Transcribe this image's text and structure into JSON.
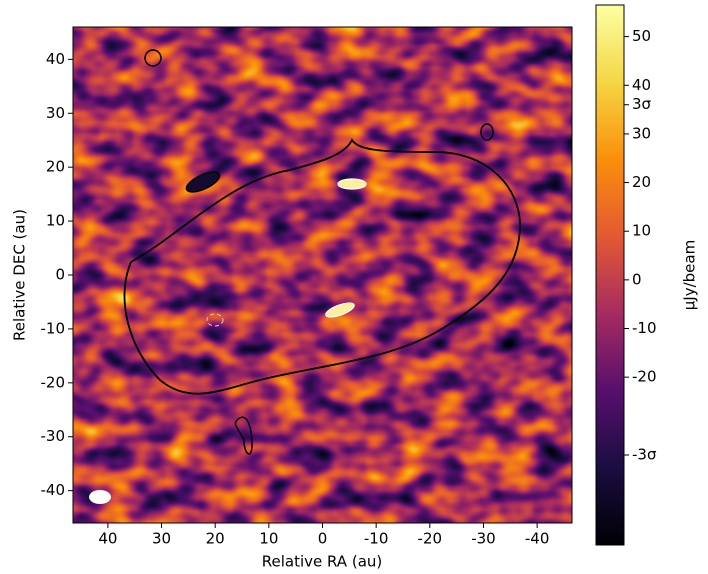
{
  "chart_data": {
    "type": "image",
    "colormap": "inferno",
    "x_label": "Relative RA (au)",
    "y_label": "Relative DEC (au)",
    "xlim": [
      46.5,
      -46.5
    ],
    "ylim": [
      -46,
      46
    ],
    "xticks": [
      40,
      30,
      20,
      10,
      0,
      -10,
      -20,
      -30,
      -40
    ],
    "yticks": [
      -40,
      -30,
      -20,
      -10,
      0,
      10,
      20,
      30,
      40
    ],
    "colorbar": {
      "label": "μJy/beam",
      "lim": [
        -54.5,
        56.5
      ],
      "ticks": [
        {
          "value": -36,
          "label": "-3σ"
        },
        -20,
        -10,
        0,
        10,
        20,
        30,
        {
          "value": 36,
          "label": "3σ"
        },
        40,
        50
      ]
    }
  }
}
